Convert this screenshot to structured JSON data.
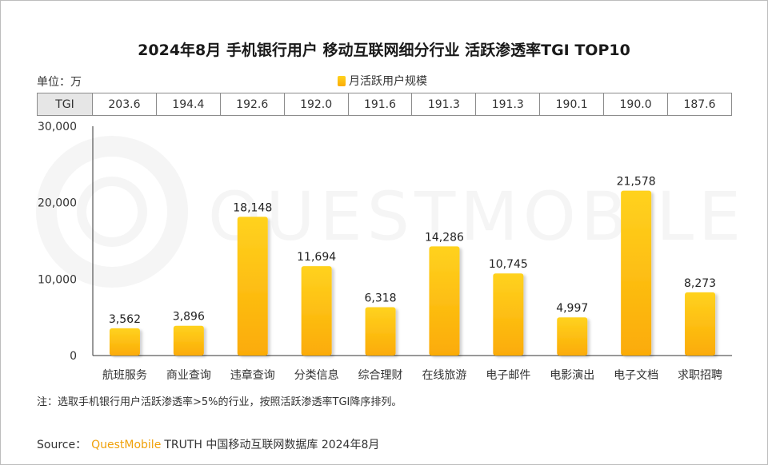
{
  "title": "2024年8月 手机银行用户 移动互联网细分行业 活跃渗透率TGI TOP10",
  "unit_label": "单位：万",
  "legend_label": "月活跃用户规模",
  "watermark": "QUESTMOBILE",
  "tgi_table": {
    "header": "TGI",
    "values": [
      "203.6",
      "194.4",
      "192.6",
      "192.0",
      "191.6",
      "191.3",
      "191.3",
      "190.1",
      "190.0",
      "187.6"
    ]
  },
  "chart_data": {
    "type": "bar",
    "categories": [
      "航班服务",
      "商业查询",
      "违章查询",
      "分类信息",
      "综合理财",
      "在线旅游",
      "电子邮件",
      "电影演出",
      "电子文档",
      "求职招聘"
    ],
    "series": [
      {
        "name": "月活跃用户规模",
        "values": [
          3562,
          3896,
          18148,
          11694,
          6318,
          14286,
          10745,
          4997,
          21578,
          8273
        ],
        "labels": [
          "3,562",
          "3,896",
          "18,148",
          "11,694",
          "6,318",
          "14,286",
          "10,745",
          "4,997",
          "21,578",
          "8,273"
        ]
      }
    ],
    "ylim": [
      0,
      30000
    ],
    "yticks": [
      "0",
      "10,000",
      "20,000",
      "30,000"
    ],
    "ytick_values": [
      0,
      10000,
      20000,
      30000
    ],
    "grid": false,
    "legend_position": "top-center",
    "bar_color_top": "#ffd21f",
    "bar_color_bottom": "#fbab06"
  },
  "note": "注：选取手机银行用户活跃渗透率>5%的行业，按照活跃渗透率TGI降序排列。",
  "source": {
    "label": "Source：",
    "brand": "QuestMobile",
    "text": "TRUTH 中国移动互联网数据库 2024年8月"
  }
}
